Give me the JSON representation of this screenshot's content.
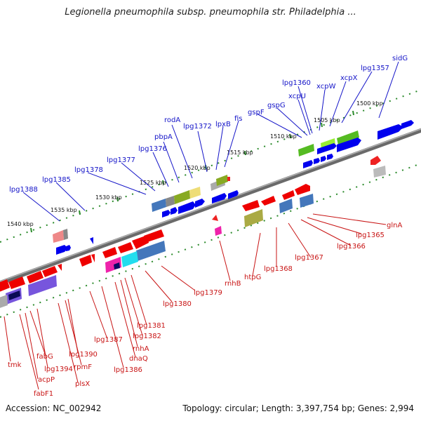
{
  "title": "Legionella pneumophila subsp. pneumophila str. Philadelphia ...",
  "accession_text": "Accession: NC_002942",
  "topology_text": "Topology: circular; Length: 3,397,754 bp; Genes: 2,994",
  "ruler_ticks": [
    "1500 kbp",
    "1505 kbp",
    "1510 kbp",
    "1515 kbp",
    "1520 kbp",
    "1525 kbp",
    "1530 kbp",
    "1535 kbp",
    "1540 kbp"
  ],
  "forward_gene_labels": [
    "sidG",
    "lpg1357",
    "xcpX",
    "xcpW",
    "lpg1360",
    "xcpU",
    "gspG",
    "gspF",
    "fis",
    "lpxB",
    "lpg1372",
    "rodA",
    "pbpA",
    "lpg1376",
    "lpg1377",
    "lpg1378",
    "lpg1385",
    "lpg1388"
  ],
  "reverse_gene_labels": [
    "glnA",
    "lpg1365",
    "lpg1366",
    "lpg1367",
    "lpg1368",
    "htpG",
    "rnhB",
    "lpg1379",
    "lpg1380",
    "lpg1381",
    "lpg1382",
    "rnhA",
    "dnaQ",
    "lpg1386",
    "lpg1387",
    "lpg1390",
    "rpmF",
    "plsX",
    "lpg1394",
    "fabG",
    "acpP",
    "fabF1",
    "tmk"
  ],
  "colors": {
    "forward_label": "#1414c8",
    "reverse_label": "#c81414",
    "backbone": "#808080",
    "tick": "#2a8a2a"
  }
}
